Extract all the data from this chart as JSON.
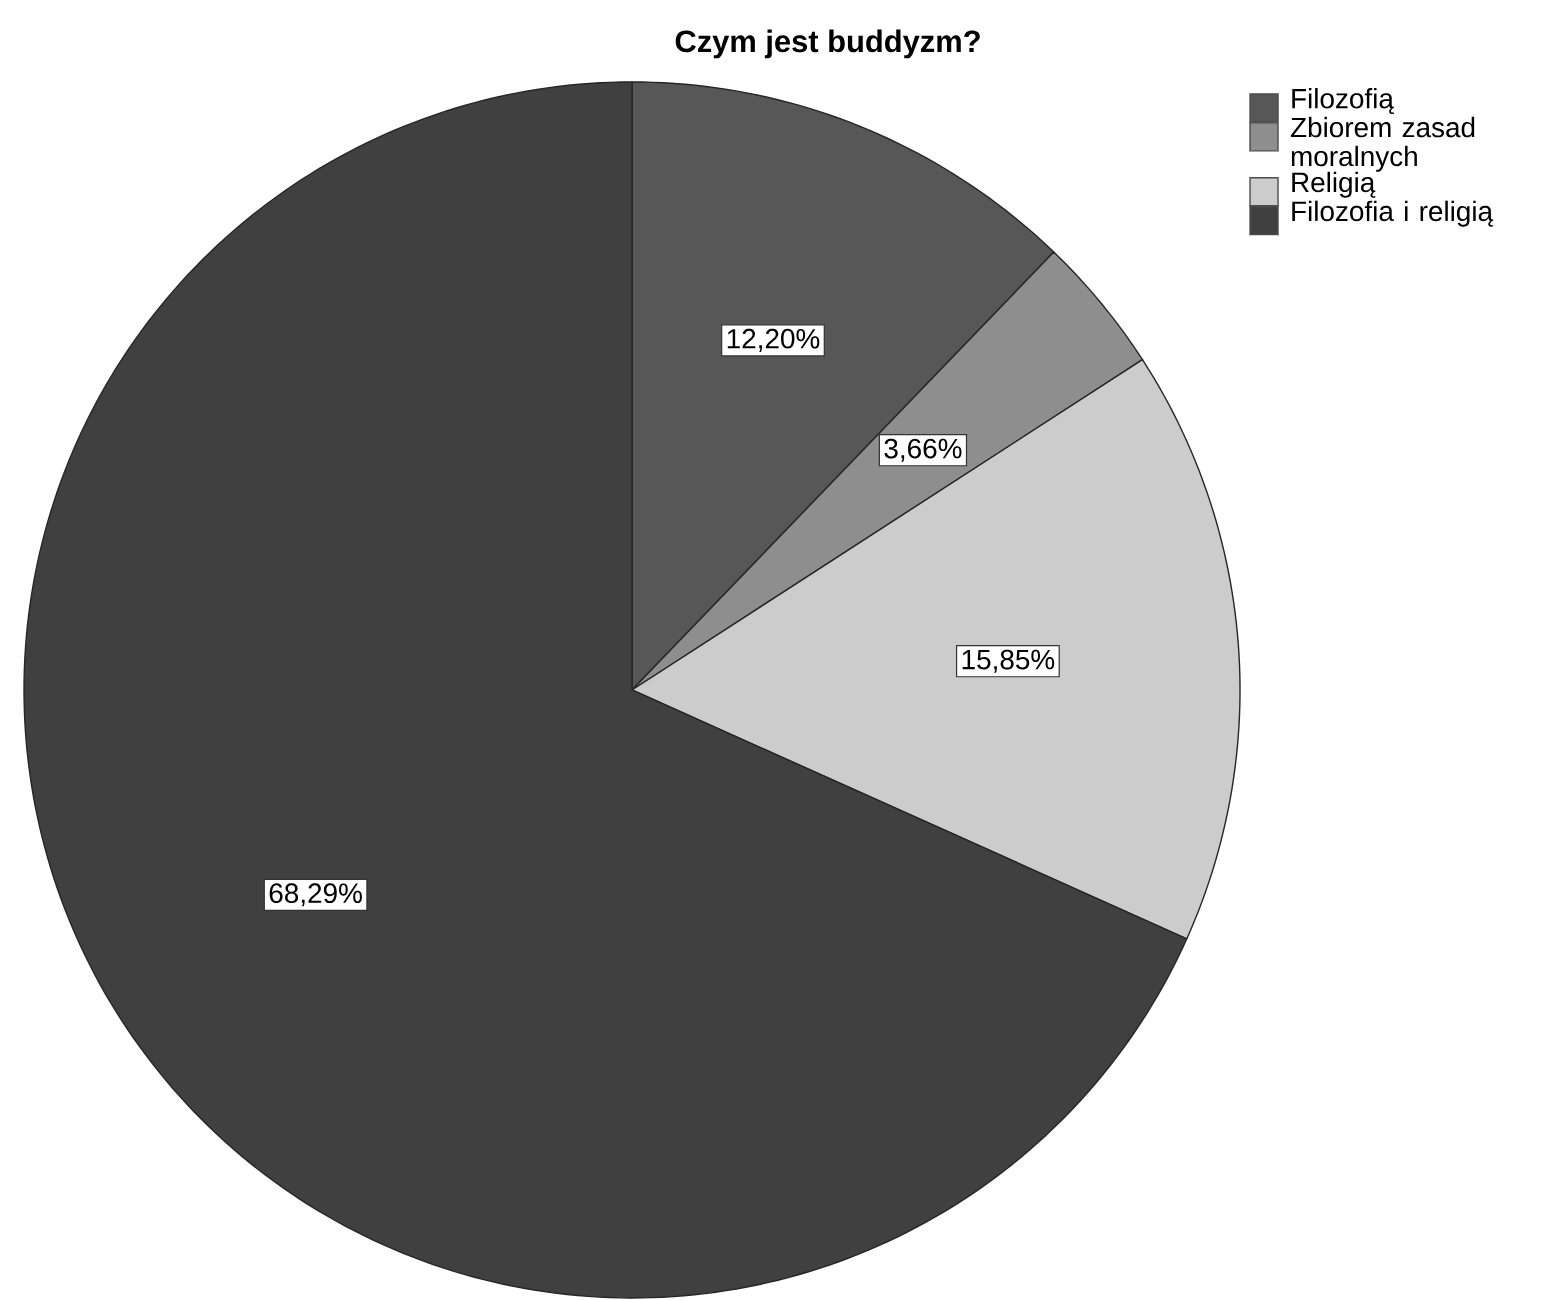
{
  "chart_data": {
    "type": "pie",
    "title": "Czym jest buddyzm?",
    "categories": [
      "Filozofią",
      "Zbiorem zasad moralnych",
      "Religią",
      "Filozofia i religią"
    ],
    "values": [
      12.2,
      3.66,
      15.85,
      68.29
    ],
    "colors": [
      "#575757",
      "#8e8e8e",
      "#cccccc",
      "#404040"
    ],
    "value_labels": [
      "12,20%",
      "3,66%",
      "15,85%",
      "68,29%"
    ],
    "legend": "top right"
  }
}
